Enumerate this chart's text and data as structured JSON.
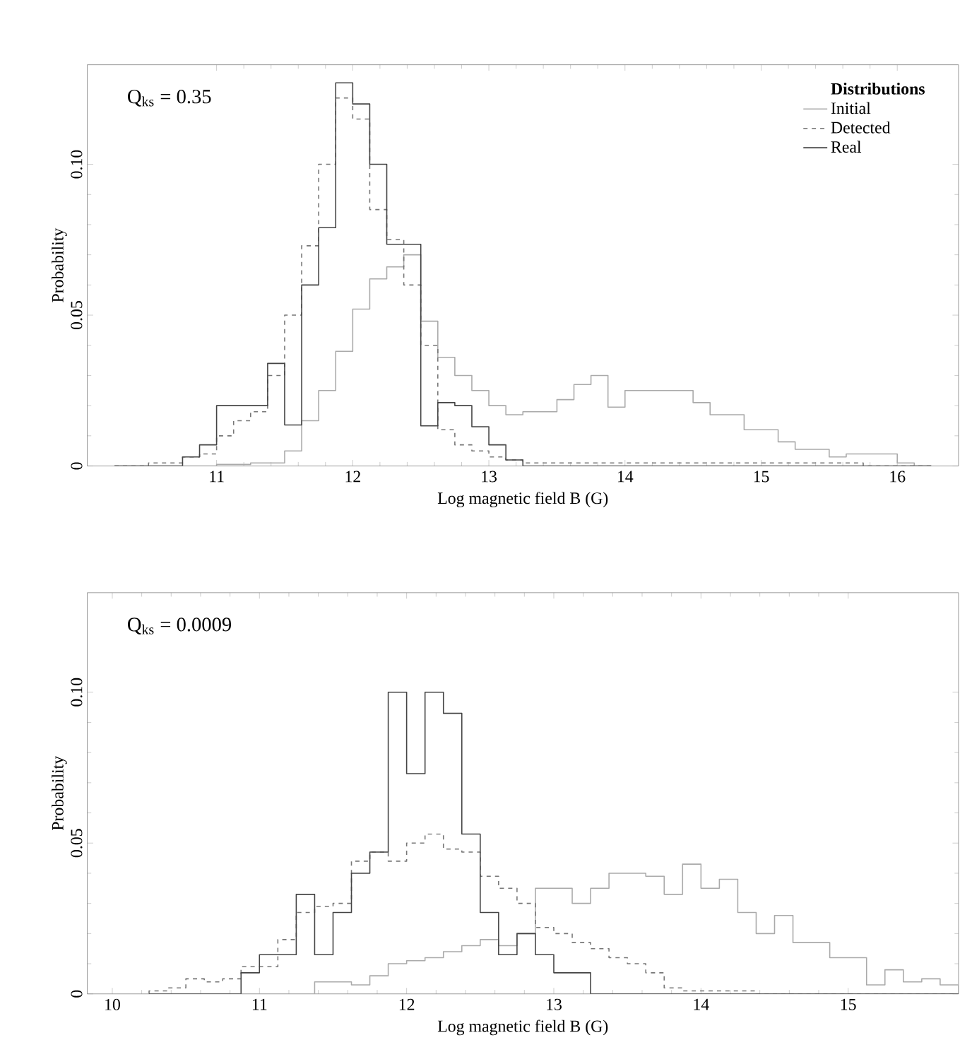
{
  "chart_data": [
    {
      "type": "histogram",
      "xlabel": "Log magnetic field B (G)",
      "ylabel": "Probability",
      "legend_title": "Distributions",
      "legend": "top right",
      "annotations": [
        "Q$_{ks}$ = 0.35"
      ],
      "xlim": [
        10.05,
        16.45
      ],
      "ylim": [
        0,
        0.133
      ],
      "xticks": [
        11,
        12,
        13,
        14,
        15,
        16
      ],
      "yticks": [
        0,
        0.05,
        {
          "value": 0.1,
          "label": "0.10"
        }
      ],
      "bins": [
        10.25,
        10.375,
        10.5,
        10.625,
        10.75,
        10.875,
        11.0,
        11.125,
        11.25,
        11.375,
        11.5,
        11.625,
        11.75,
        11.875,
        12.0,
        12.125,
        12.25,
        12.375,
        12.5,
        12.625,
        12.75,
        12.875,
        13.0,
        13.125,
        13.25,
        13.375,
        13.5,
        13.625,
        13.75,
        13.875,
        14.0,
        14.125,
        14.25,
        14.375,
        14.5,
        14.625,
        14.75,
        14.875,
        15.0,
        15.125,
        15.25,
        15.375,
        15.5,
        15.625,
        15.75,
        15.875,
        16.0,
        16.125,
        16.25
      ],
      "series": [
        {
          "name": "Initial",
          "color": "#aaaaaa",
          "line_style": "solid",
          "values": [
            0,
            0,
            0,
            0,
            0,
            0,
            0.0005,
            0.0005,
            0.001,
            0.001,
            0.005,
            0.015,
            0.025,
            0.038,
            0.052,
            0.062,
            0.066,
            0.07,
            0.048,
            0.036,
            0.03,
            0.025,
            0.02,
            0.017,
            0.018,
            0.018,
            0.022,
            0.027,
            0.03,
            0.0195,
            0.025,
            0.025,
            0.025,
            0.025,
            0.021,
            0.017,
            0.017,
            0.012,
            0.012,
            0.008,
            0.0055,
            0.0055,
            0.003,
            0.004,
            0.004,
            0.004,
            0.001,
            0
          ]
        },
        {
          "name": "Detected",
          "color": "#777777",
          "line_style": "dashed",
          "values": [
            0,
            0,
            0.001,
            0.001,
            0.003,
            0.004,
            0.01,
            0.015,
            0.018,
            0.03,
            0.05,
            0.073,
            0.1,
            0.122,
            0.115,
            0.085,
            0.075,
            0.06,
            0.04,
            0.012,
            0.007,
            0.005,
            0.003,
            0.002,
            0.001,
            0.001,
            0.001,
            0.001,
            0.001,
            0.001,
            0.001,
            0.001,
            0.001,
            0.001,
            0.001,
            0.001,
            0.001,
            0.001,
            0.001,
            0.001,
            0.001,
            0.001,
            0.001,
            0.001,
            0,
            0,
            0,
            0
          ]
        },
        {
          "name": "Real",
          "color": "#444444",
          "line_style": "solid",
          "values": [
            0,
            0,
            0,
            0,
            0.003,
            0.007,
            0.02,
            0.02,
            0.02,
            0.034,
            0.0136,
            0.06,
            0.079,
            0.127,
            0.12,
            0.1,
            0.0735,
            0.0735,
            0.0133,
            0.021,
            0.02,
            0.013,
            0.007,
            0.002,
            0,
            0,
            0,
            0,
            0,
            0,
            0,
            0,
            0,
            0,
            0,
            0,
            0,
            0,
            0,
            0,
            0,
            0,
            0,
            0,
            0,
            0,
            0,
            0
          ]
        }
      ]
    },
    {
      "type": "histogram",
      "xlabel": "Log magnetic field B (G)",
      "ylabel": "Probability",
      "annotations": [
        "Q$_{ks}$ = 0.0009"
      ],
      "xlim": [
        9.83,
        15.75
      ],
      "ylim": [
        0,
        0.133
      ],
      "xticks": [
        10,
        11,
        12,
        13,
        14,
        15
      ],
      "yticks": [
        0,
        0.05,
        {
          "value": 0.1,
          "label": "0.10"
        }
      ],
      "bins": [
        10.25,
        10.375,
        10.5,
        10.625,
        10.75,
        10.875,
        11.0,
        11.125,
        11.25,
        11.375,
        11.5,
        11.625,
        11.75,
        11.875,
        12.0,
        12.125,
        12.25,
        12.375,
        12.5,
        12.625,
        12.75,
        12.875,
        13.0,
        13.125,
        13.25,
        13.375,
        13.5,
        13.625,
        13.75,
        13.875,
        14.0,
        14.125,
        14.25,
        14.375,
        14.5,
        14.625,
        14.75,
        14.875,
        15.0,
        15.125,
        15.25,
        15.375,
        15.5,
        15.625,
        15.75
      ],
      "series": [
        {
          "color": "#aaaaaa",
          "line_style": "solid",
          "values": [
            0,
            0,
            0,
            0,
            0,
            0,
            0,
            0,
            0,
            0.004,
            0.004,
            0.003,
            0.006,
            0.01,
            0.011,
            0.012,
            0.014,
            0.016,
            0.018,
            0.016,
            0.02,
            0.035,
            0.035,
            0.03,
            0.035,
            0.04,
            0.04,
            0.039,
            0.033,
            0.043,
            0.035,
            0.038,
            0.027,
            0.02,
            0.026,
            0.017,
            0.017,
            0.012,
            0.012,
            0.003,
            0.008,
            0.004,
            0.005,
            0.003
          ]
        },
        {
          "color": "#777777",
          "line_style": "dashed",
          "values": [
            0.001,
            0.002,
            0.005,
            0.004,
            0.005,
            0.009,
            0.009,
            0.018,
            0.027,
            0.029,
            0.03,
            0.044,
            0.047,
            0.044,
            0.05,
            0.053,
            0.048,
            0.047,
            0.039,
            0.035,
            0.03,
            0.022,
            0.02,
            0.017,
            0.015,
            0.012,
            0.01,
            0.007,
            0.002,
            0.001,
            0.001,
            0.001,
            0.001,
            0,
            0,
            0,
            0,
            0,
            0,
            0,
            0,
            0,
            0,
            0
          ]
        },
        {
          "color": "#444444",
          "line_style": "solid",
          "values": [
            0,
            0,
            0,
            0,
            0,
            0.007,
            0.013,
            0.013,
            0.033,
            0.013,
            0.027,
            0.04,
            0.047,
            0.1,
            0.073,
            0.1,
            0.093,
            0.053,
            0.027,
            0.013,
            0.02,
            0.013,
            0.007,
            0.007,
            0,
            0,
            0,
            0,
            0,
            0,
            0,
            0,
            0,
            0,
            0,
            0,
            0,
            0,
            0,
            0,
            0,
            0,
            0,
            0
          ]
        }
      ]
    }
  ]
}
